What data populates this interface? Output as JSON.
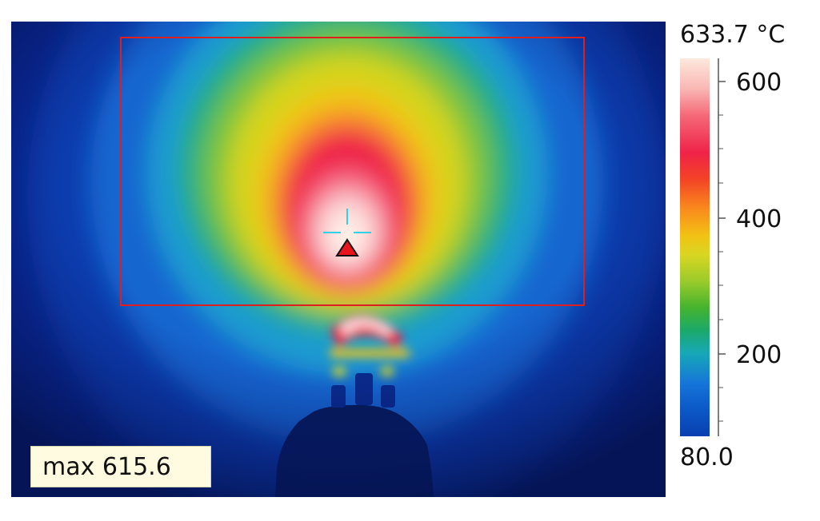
{
  "thermal_view": {
    "max_label": "max 615.6",
    "roi_color": "#e01e1e",
    "crosshair_color": "#2fd3e8",
    "marker_color": "#e8141e"
  },
  "color_scale": {
    "max_value": "633.7 °C",
    "min_value": "80.0",
    "tick_labels": [
      "600",
      "400",
      "200"
    ],
    "palette": [
      "#fde9dc",
      "#ef2348",
      "#f98c1c",
      "#d8d622",
      "#45b32e",
      "#17a8b8",
      "#0a3fb0"
    ]
  }
}
